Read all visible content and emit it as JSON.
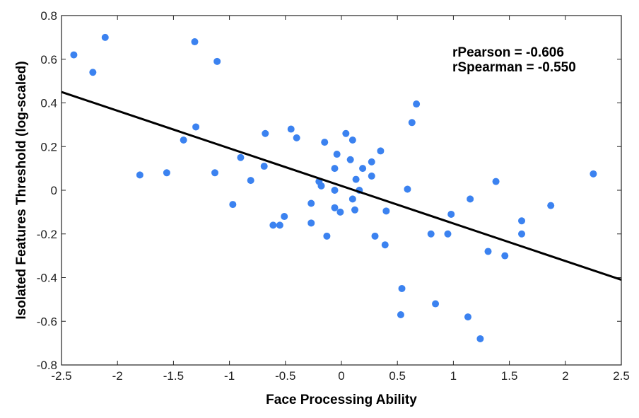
{
  "chart_data": {
    "type": "scatter",
    "title": "",
    "xlabel": "Face Processing Ability",
    "ylabel": "Isolated Features Threshold (log-scaled)",
    "xlim": [
      -2.5,
      2.5
    ],
    "ylim": [
      -0.8,
      0.8
    ],
    "xticks": [
      "-2.5",
      "-2",
      "-1.5",
      "-1",
      "-0.5",
      "0",
      "0.5",
      "1",
      "1.5",
      "2",
      "2.5"
    ],
    "xtick_values": [
      -2.5,
      -2,
      -1.5,
      -1,
      -0.5,
      0,
      0.5,
      1,
      1.5,
      2,
      2.5
    ],
    "yticks": [
      "-0.8",
      "-0.6",
      "-0.4",
      "-0.2",
      "0",
      "0.2",
      "0.4",
      "0.6",
      "0.8"
    ],
    "ytick_values": [
      -0.8,
      -0.6,
      -0.4,
      -0.2,
      0,
      0.2,
      0.4,
      0.6,
      0.8
    ],
    "grid": false,
    "point_color": "#3b82f0",
    "line_color": "#000000",
    "annotations": [
      "rPearson = -0.606",
      "rSpearman = -0.550"
    ],
    "fit_line": {
      "x": [
        -2.5,
        2.5
      ],
      "y": [
        0.45,
        -0.41
      ]
    },
    "points": [
      [
        -2.39,
        0.62
      ],
      [
        -2.22,
        0.54
      ],
      [
        -2.11,
        0.7
      ],
      [
        -1.8,
        0.07
      ],
      [
        -1.56,
        0.08
      ],
      [
        -1.41,
        0.23
      ],
      [
        -1.31,
        0.68
      ],
      [
        -1.3,
        0.29
      ],
      [
        -1.11,
        0.59
      ],
      [
        -1.13,
        0.08
      ],
      [
        -0.97,
        -0.065
      ],
      [
        -0.9,
        0.15
      ],
      [
        -0.81,
        0.045
      ],
      [
        -0.69,
        0.11
      ],
      [
        -0.68,
        0.26
      ],
      [
        -0.45,
        0.28
      ],
      [
        -0.4,
        0.24
      ],
      [
        -0.61,
        -0.16
      ],
      [
        -0.55,
        -0.16
      ],
      [
        -0.51,
        -0.12
      ],
      [
        -0.27,
        -0.06
      ],
      [
        -0.27,
        -0.15
      ],
      [
        -0.15,
        0.22
      ],
      [
        -0.2,
        0.04
      ],
      [
        -0.18,
        0.02
      ],
      [
        -0.13,
        -0.21
      ],
      [
        -0.06,
        0.1
      ],
      [
        -0.06,
        0.0
      ],
      [
        -0.06,
        -0.08
      ],
      [
        -0.04,
        0.165
      ],
      [
        -0.01,
        -0.1
      ],
      [
        0.04,
        0.26
      ],
      [
        0.08,
        0.14
      ],
      [
        0.1,
        0.23
      ],
      [
        0.1,
        -0.04
      ],
      [
        0.12,
        -0.09
      ],
      [
        0.13,
        0.05
      ],
      [
        0.16,
        0.0
      ],
      [
        0.19,
        0.1
      ],
      [
        0.27,
        0.13
      ],
      [
        0.27,
        0.065
      ],
      [
        0.35,
        0.18
      ],
      [
        0.3,
        -0.21
      ],
      [
        0.39,
        -0.25
      ],
      [
        0.4,
        -0.095
      ],
      [
        0.59,
        0.005
      ],
      [
        0.63,
        0.31
      ],
      [
        0.67,
        0.395
      ],
      [
        0.54,
        -0.45
      ],
      [
        0.53,
        -0.57
      ],
      [
        0.84,
        -0.52
      ],
      [
        0.8,
        -0.2
      ],
      [
        0.95,
        -0.2
      ],
      [
        0.98,
        -0.11
      ],
      [
        1.15,
        -0.04
      ],
      [
        1.13,
        -0.58
      ],
      [
        1.24,
        -0.68
      ],
      [
        1.31,
        -0.28
      ],
      [
        1.38,
        0.04
      ],
      [
        1.46,
        -0.3
      ],
      [
        1.61,
        -0.14
      ],
      [
        1.61,
        -0.2
      ],
      [
        1.87,
        -0.07
      ],
      [
        2.25,
        0.075
      ]
    ]
  }
}
